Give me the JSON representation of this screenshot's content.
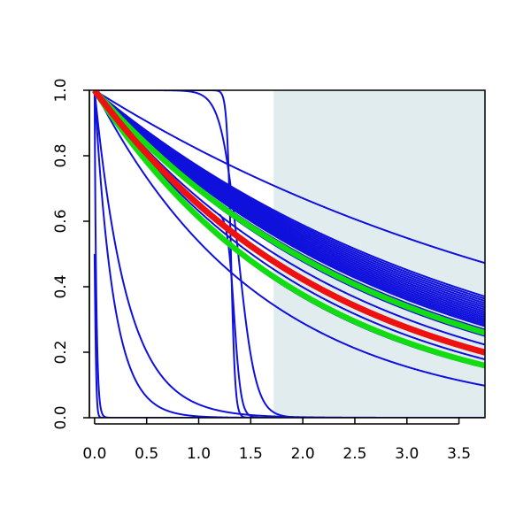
{
  "chart_data": {
    "type": "line",
    "title": "",
    "xlabel": "",
    "ylabel": "",
    "xlim": [
      -0.05,
      3.75
    ],
    "ylim": [
      0.0,
      1.0
    ],
    "grid": false,
    "x_ticks": [
      {
        "value": 0.0,
        "label": "0.0"
      },
      {
        "value": 0.5,
        "label": "0.5"
      },
      {
        "value": 1.0,
        "label": "1.0"
      },
      {
        "value": 1.5,
        "label": "1.5"
      },
      {
        "value": 2.0,
        "label": "2.0"
      },
      {
        "value": 2.5,
        "label": "2.5"
      },
      {
        "value": 3.0,
        "label": "3.0"
      },
      {
        "value": 3.5,
        "label": "3.5"
      }
    ],
    "y_ticks": [
      {
        "value": 0.0,
        "label": "0.0"
      },
      {
        "value": 0.2,
        "label": "0.2"
      },
      {
        "value": 0.4,
        "label": "0.4"
      },
      {
        "value": 0.6,
        "label": "0.6"
      },
      {
        "value": 0.8,
        "label": "0.8"
      },
      {
        "value": 1.0,
        "label": "1.0"
      }
    ],
    "shaded_region": {
      "x_start": 1.72,
      "x_end": 3.75,
      "color": "#e0ecee"
    },
    "colors": {
      "blue": "#1010dd",
      "green": "#11dd11",
      "red": "#ee1111"
    },
    "series": [
      {
        "color": "blue",
        "kind": "exp",
        "rate": 0.2
      },
      {
        "color": "blue",
        "kind": "exp",
        "rate": 0.265
      },
      {
        "color": "blue",
        "kind": "exp",
        "rate": 0.27
      },
      {
        "color": "blue",
        "kind": "exp",
        "rate": 0.275
      },
      {
        "color": "blue",
        "kind": "exp",
        "rate": 0.28
      },
      {
        "color": "blue",
        "kind": "exp",
        "rate": 0.285
      },
      {
        "color": "blue",
        "kind": "exp",
        "rate": 0.29
      },
      {
        "color": "blue",
        "kind": "exp",
        "rate": 0.295
      },
      {
        "color": "blue",
        "kind": "exp",
        "rate": 0.3
      },
      {
        "color": "blue",
        "kind": "exp",
        "rate": 0.305
      },
      {
        "color": "blue",
        "kind": "exp",
        "rate": 0.31
      },
      {
        "color": "blue",
        "kind": "exp",
        "rate": 0.315
      },
      {
        "color": "blue",
        "kind": "exp",
        "rate": 0.32
      },
      {
        "color": "blue",
        "kind": "exp",
        "rate": 0.325
      },
      {
        "color": "blue",
        "kind": "exp",
        "rate": 0.33
      },
      {
        "color": "blue",
        "kind": "exp",
        "rate": 0.335
      },
      {
        "color": "blue",
        "kind": "exp",
        "rate": 0.34
      },
      {
        "color": "blue",
        "kind": "exp",
        "rate": 0.35
      },
      {
        "color": "blue",
        "kind": "exp",
        "rate": 0.36
      },
      {
        "color": "blue",
        "kind": "exp",
        "rate": 0.37
      },
      {
        "color": "blue",
        "kind": "exp",
        "rate": 0.4
      },
      {
        "color": "blue",
        "kind": "exp",
        "rate": 0.43
      },
      {
        "color": "blue",
        "kind": "exp",
        "rate": 0.46
      },
      {
        "color": "blue",
        "kind": "exp",
        "rate": 0.5
      },
      {
        "color": "blue",
        "kind": "exp",
        "rate": 0.62
      },
      {
        "color": "blue",
        "kind": "exp",
        "rate": 3.2
      },
      {
        "color": "blue",
        "kind": "exp",
        "rate": 5.5
      },
      {
        "color": "blue",
        "kind": "exp",
        "rate": 60
      },
      {
        "color": "blue",
        "kind": "sigmoid",
        "t0": 1.38,
        "k": 12,
        "ymax": 1.0
      },
      {
        "color": "blue",
        "kind": "sigmoid",
        "t0": 1.31,
        "k": 50,
        "ymax": 1.0
      },
      {
        "color": "blue",
        "kind": "sigmoid",
        "t0": 1.34,
        "k": 30,
        "ymax": 0.63,
        "t_start": 1.2
      },
      {
        "color": "blue",
        "kind": "sigmoid",
        "t0": 0.0,
        "k": 120,
        "ymax": 1.0
      },
      {
        "color": "green",
        "kind": "exp",
        "rate": 0.36
      },
      {
        "color": "green",
        "kind": "exp",
        "rate": 0.43
      },
      {
        "color": "green",
        "kind": "exp",
        "rate": 0.49
      },
      {
        "color": "red",
        "kind": "exp",
        "rate": 0.43
      }
    ]
  }
}
